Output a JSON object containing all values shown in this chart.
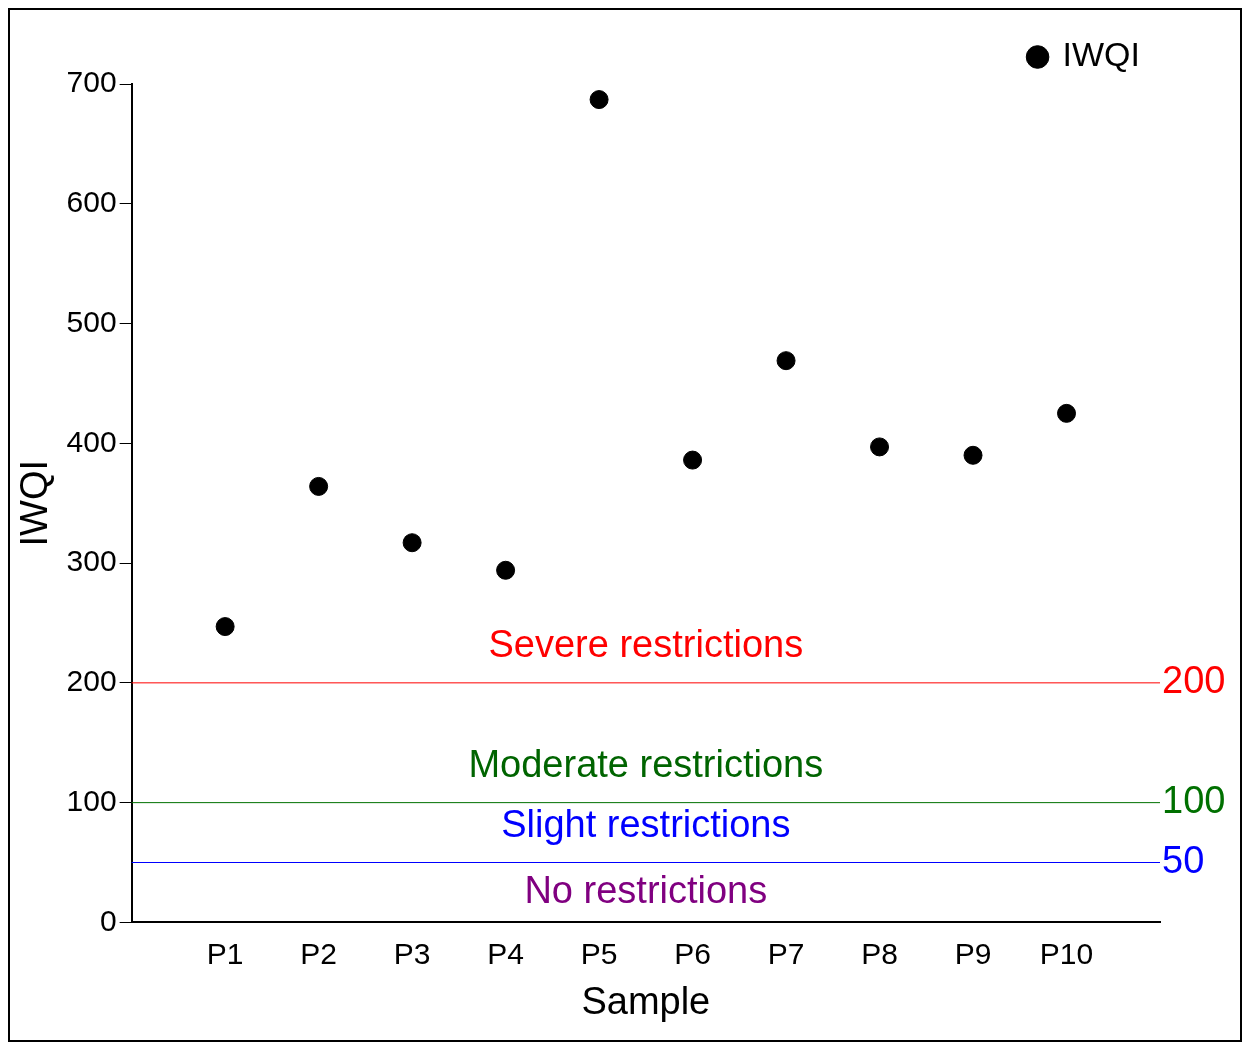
{
  "chart_data": {
    "type": "scatter",
    "xlabel": "Sample",
    "ylabel": "IWQI",
    "categories": [
      "P1",
      "P2",
      "P3",
      "P4",
      "P5",
      "P6",
      "P7",
      "P8",
      "P9",
      "P10"
    ],
    "series": [
      {
        "name": "IWQI",
        "color": "#000000",
        "values": [
          247,
          364,
          317,
          294,
          687,
          386,
          469,
          397,
          390,
          425
        ]
      }
    ],
    "ylim": [
      0,
      700
    ],
    "yticks": [
      0,
      100,
      200,
      300,
      400,
      500,
      600,
      700
    ],
    "ref_lines": [
      {
        "axis": "y",
        "value": 200,
        "label": "200",
        "color": "#ff0000"
      },
      {
        "axis": "y",
        "value": 100,
        "label": "100",
        "color": "#007000"
      },
      {
        "axis": "y",
        "value": 50,
        "label": "50",
        "color": "#0000ff"
      }
    ],
    "annotations": [
      "Severe restrictions",
      "Moderate restrictions",
      "Slight restrictions",
      "No restrictions"
    ],
    "marker": "circle",
    "grid": false,
    "legend": "top right"
  }
}
